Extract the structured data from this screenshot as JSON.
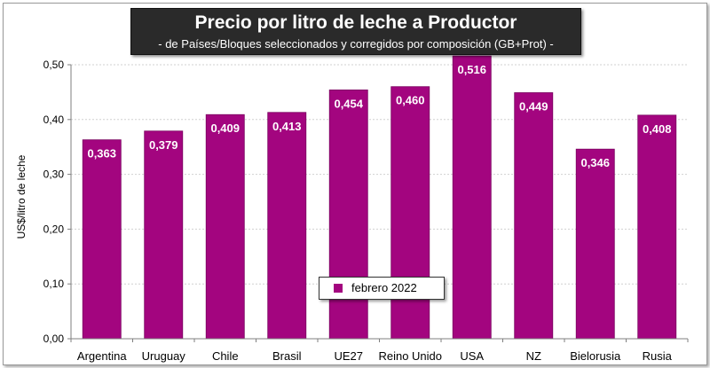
{
  "chart_data": {
    "type": "bar",
    "title": "Precio por litro de leche a Productor",
    "subtitle": "-  de Países/Bloques seleccionados y corregidos por composición (GB+Prot) -",
    "xlabel": "",
    "ylabel": "US$/litro de leche",
    "ylim": [
      0,
      0.5
    ],
    "yticks": [
      "0,00",
      "0,10",
      "0,20",
      "0,30",
      "0,40",
      "0,50"
    ],
    "ytick_values": [
      0,
      0.1,
      0.2,
      0.3,
      0.4,
      0.5
    ],
    "categories": [
      "Argentina",
      "Uruguay",
      "Chile",
      "Brasil",
      "UE27",
      "Reino Unido",
      "USA",
      "NZ",
      "Bielorusia",
      "Rusia"
    ],
    "series": [
      {
        "name": "febrero 2022",
        "values": [
          0.363,
          0.379,
          0.409,
          0.413,
          0.454,
          0.46,
          0.516,
          0.449,
          0.346,
          0.408
        ],
        "labels": [
          "0,363",
          "0,379",
          "0,409",
          "0,413",
          "0,454",
          "0,460",
          "0,516",
          "0,449",
          "0,346",
          "0,408"
        ]
      }
    ],
    "legend": {
      "position": "bottom-center",
      "label": "febrero 2022"
    },
    "grid": true
  },
  "colors": {
    "bar": "#a3057f",
    "bar_edge": "#7a0360",
    "grid": "#d0d0d0",
    "axis": "#7f7f7f",
    "title_bg": "#2a2a2a"
  }
}
